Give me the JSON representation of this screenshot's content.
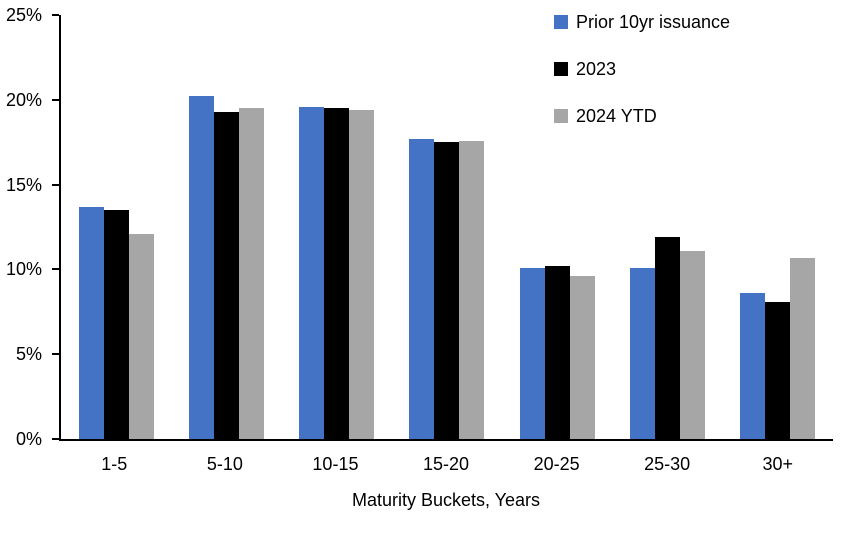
{
  "chart_data": {
    "type": "bar",
    "title": "",
    "xlabel": "Maturity Buckets, Years",
    "ylabel": "",
    "categories": [
      "1-5",
      "5-10",
      "10-15",
      "15-20",
      "20-25",
      "25-30",
      "30+"
    ],
    "series": [
      {
        "name": "Prior 10yr issuance",
        "color": "#4472C4",
        "values": [
          13.7,
          20.2,
          19.6,
          17.7,
          10.1,
          10.1,
          8.6
        ]
      },
      {
        "name": "2023",
        "color": "#000000",
        "values": [
          13.5,
          19.3,
          19.5,
          17.5,
          10.2,
          11.9,
          8.1
        ]
      },
      {
        "name": "2024 YTD",
        "color": "#A6A6A6",
        "values": [
          12.1,
          19.5,
          19.4,
          17.6,
          9.6,
          11.1,
          10.7
        ]
      }
    ],
    "ylim": [
      0,
      25
    ],
    "ytick_step": 5,
    "ytick_labels": [
      "0%",
      "5%",
      "10%",
      "15%",
      "20%",
      "25%"
    ],
    "grid": false,
    "legend_position": "top-right",
    "axis_color": "#000000"
  }
}
